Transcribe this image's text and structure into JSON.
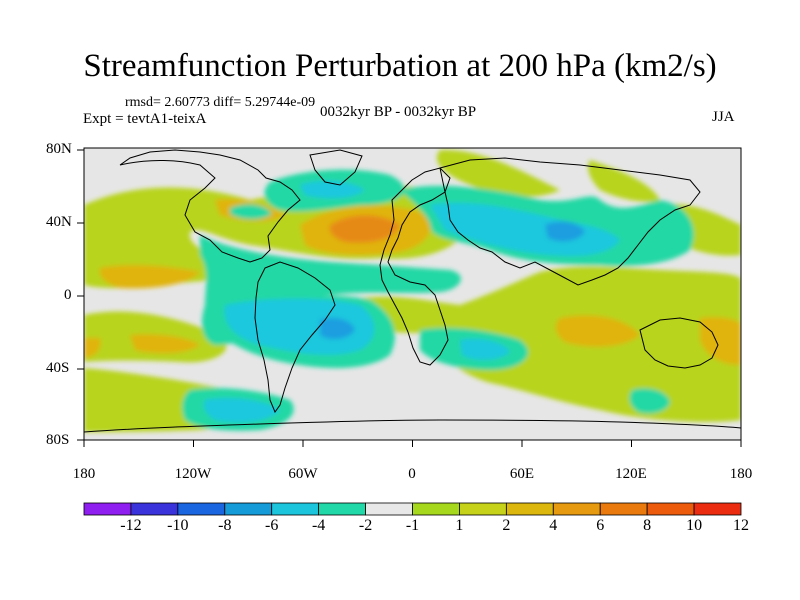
{
  "title": "Streamfunction Perturbation at 200 hPa (km2/s)",
  "stats_text": "rmsd= 2.60773  diff= 5.29744e-09",
  "experiment": "Expt = tevtA1-teixA",
  "period": "0032kyr BP - 0032kyr BP",
  "season": "JJA",
  "x_tick_labels": [
    "180",
    "120W",
    "60W",
    "0",
    "60E",
    "120E",
    "180"
  ],
  "y_tick_labels": [
    "80N",
    "40N",
    "0",
    "40S",
    "80S"
  ],
  "colorbar": {
    "labels": [
      "-12",
      "-10",
      "-8",
      "-6",
      "-4",
      "-2",
      "-1",
      "1",
      "2",
      "4",
      "6",
      "8",
      "10",
      "12"
    ],
    "colors": [
      "#8f1ff0",
      "#3a33dc",
      "#1a66e0",
      "#159bd8",
      "#1cc4dc",
      "#20d8a8",
      "#e8e8e8",
      "#a6d81e",
      "#c6d21a",
      "#dcb80e",
      "#e69a10",
      "#ea7a0e",
      "#ec5a0c",
      "#ec2c10"
    ]
  },
  "colors": {
    "neutral": "#e6e6e6",
    "pos_light": "#c4d418",
    "pos_mid": "#e0b40e",
    "pos_strong": "#e68a12",
    "neg_light": "#20d8a4",
    "neg_mid": "#1cc8de",
    "neg_strong": "#1a9ee0"
  }
}
